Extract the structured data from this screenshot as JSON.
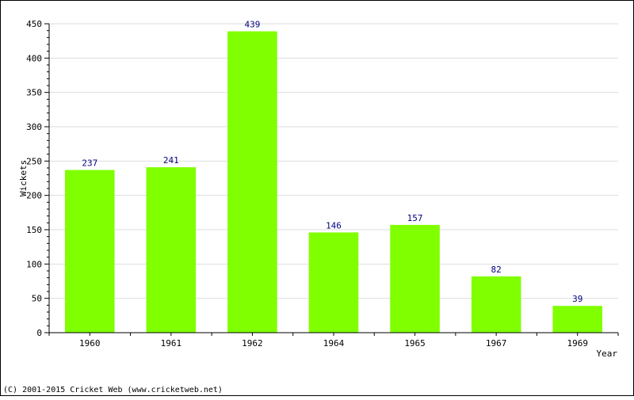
{
  "chart_data": {
    "type": "bar",
    "categories": [
      "1960",
      "1961",
      "1962",
      "1964",
      "1965",
      "1967",
      "1969"
    ],
    "values": [
      237,
      241,
      439,
      146,
      157,
      82,
      39
    ],
    "xlabel": "Year",
    "ylabel": "Wickets",
    "ylim": [
      0,
      450
    ],
    "yticks": [
      0,
      50,
      100,
      150,
      200,
      250,
      300,
      350,
      400,
      450
    ],
    "grid": true,
    "bar_color": "#80ff00",
    "label_color": "#000080"
  },
  "footer": {
    "copyright": "(C) 2001-2015 Cricket Web (www.cricketweb.net)"
  }
}
